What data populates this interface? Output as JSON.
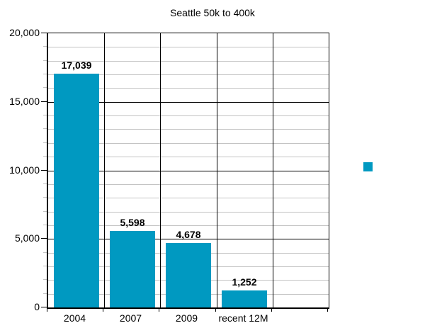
{
  "colors": {
    "bar": "#0099C1",
    "minor_grid": "#C3C3C3",
    "major_grid": "#000000",
    "axis": "#000000",
    "background": "#FFFFFF",
    "text": "#000000"
  },
  "chart_data": {
    "type": "bar",
    "title": "Seattle 50k to 400k",
    "categories": [
      "2004",
      "2007",
      "2009",
      "recent 12M"
    ],
    "values": [
      17039,
      5598,
      4678,
      1252
    ],
    "value_labels": [
      "17,039",
      "5,598",
      "4,678",
      "1,252"
    ],
    "xlabel": "",
    "ylabel": "",
    "ylim": [
      0,
      20000
    ],
    "y_major_ticks": [
      0,
      5000,
      10000,
      15000,
      20000
    ],
    "y_tick_labels": [
      "0",
      "5,000",
      "10,000",
      "15,000",
      "20,000"
    ],
    "y_minor_step": 1000,
    "grid": "major-and-minor",
    "num_slots": 5,
    "legend_position": "right",
    "legend": [
      {
        "label": "",
        "color": "#0099C1"
      }
    ]
  }
}
